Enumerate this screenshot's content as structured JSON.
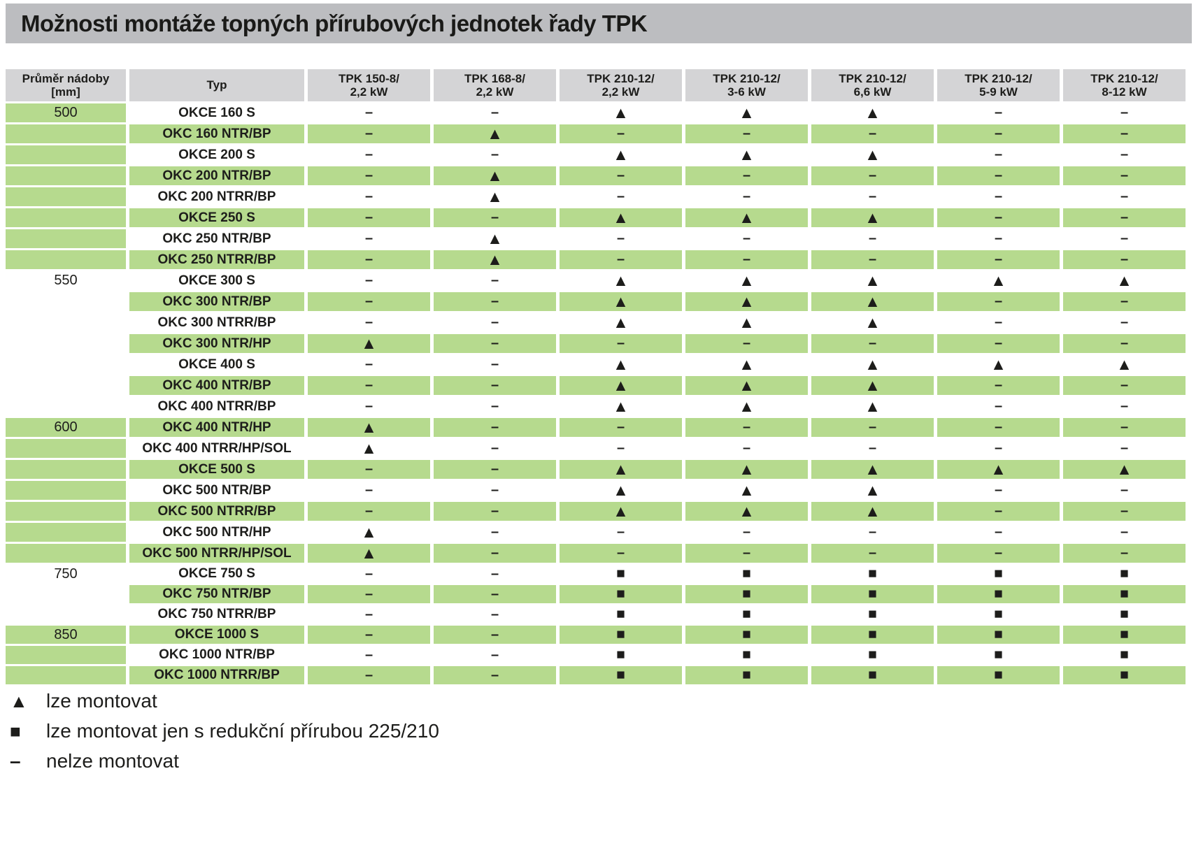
{
  "title": "Možnosti montáže topných přírubových jednotek řady TPK",
  "colors": {
    "title_bar_bg": "#bcbdc0",
    "header_bg": "#d4d4d6",
    "row_green": "#b6da8e",
    "row_white": "#ffffff",
    "text": "#1d1d1b"
  },
  "symbols": {
    "dash": "–",
    "triangle": "▲",
    "square": "■"
  },
  "table": {
    "col1_header": {
      "line1": "Průměr nádoby",
      "line2": "[mm]"
    },
    "col2_header": "Typ",
    "data_headers": [
      {
        "line1": "TPK 150-8/",
        "line2": "2,2 kW"
      },
      {
        "line1": "TPK 168-8/",
        "line2": "2,2 kW"
      },
      {
        "line1": "TPK 210-12/",
        "line2": "2,2 kW"
      },
      {
        "line1": "TPK 210-12/",
        "line2": "3-6 kW"
      },
      {
        "line1": "TPK 210-12/",
        "line2": "6,6 kW"
      },
      {
        "line1": "TPK 210-12/",
        "line2": "5-9 kW"
      },
      {
        "line1": "TPK 210-12/",
        "line2": "8-12 kW"
      }
    ],
    "rows": [
      {
        "diameter": "500",
        "diameter_bg": "green",
        "type": "OKCE 160 S",
        "cells": [
          "dash",
          "dash",
          "triangle",
          "triangle",
          "triangle",
          "dash",
          "dash"
        ]
      },
      {
        "diameter": "",
        "diameter_bg": "green",
        "type": "OKC 160 NTR/BP",
        "cells": [
          "dash",
          "triangle",
          "dash",
          "dash",
          "dash",
          "dash",
          "dash"
        ]
      },
      {
        "diameter": "",
        "diameter_bg": "green",
        "type": "OKCE 200 S",
        "cells": [
          "dash",
          "dash",
          "triangle",
          "triangle",
          "triangle",
          "dash",
          "dash"
        ]
      },
      {
        "diameter": "",
        "diameter_bg": "green",
        "type": "OKC 200 NTR/BP",
        "cells": [
          "dash",
          "triangle",
          "dash",
          "dash",
          "dash",
          "dash",
          "dash"
        ]
      },
      {
        "diameter": "",
        "diameter_bg": "green",
        "type": "OKC 200 NTRR/BP",
        "cells": [
          "dash",
          "triangle",
          "dash",
          "dash",
          "dash",
          "dash",
          "dash"
        ]
      },
      {
        "diameter": "",
        "diameter_bg": "green",
        "type": "OKCE 250 S",
        "cells": [
          "dash",
          "dash",
          "triangle",
          "triangle",
          "triangle",
          "dash",
          "dash"
        ]
      },
      {
        "diameter": "",
        "diameter_bg": "green",
        "type": "OKC 250 NTR/BP",
        "cells": [
          "dash",
          "triangle",
          "dash",
          "dash",
          "dash",
          "dash",
          "dash"
        ]
      },
      {
        "diameter": "",
        "diameter_bg": "green",
        "type": "OKC 250 NTRR/BP",
        "cells": [
          "dash",
          "triangle",
          "dash",
          "dash",
          "dash",
          "dash",
          "dash"
        ]
      },
      {
        "diameter": "550",
        "diameter_bg": "white",
        "type": "OKCE 300 S",
        "cells": [
          "dash",
          "dash",
          "triangle",
          "triangle",
          "triangle",
          "triangle",
          "triangle"
        ]
      },
      {
        "diameter": "",
        "diameter_bg": "white",
        "type": "OKC 300 NTR/BP",
        "cells": [
          "dash",
          "dash",
          "triangle",
          "triangle",
          "triangle",
          "dash",
          "dash"
        ]
      },
      {
        "diameter": "",
        "diameter_bg": "white",
        "type": "OKC 300 NTRR/BP",
        "cells": [
          "dash",
          "dash",
          "triangle",
          "triangle",
          "triangle",
          "dash",
          "dash"
        ]
      },
      {
        "diameter": "",
        "diameter_bg": "white",
        "type": "OKC 300 NTR/HP",
        "cells": [
          "triangle",
          "dash",
          "dash",
          "dash",
          "dash",
          "dash",
          "dash"
        ]
      },
      {
        "diameter": "",
        "diameter_bg": "white",
        "type": "OKCE 400 S",
        "cells": [
          "dash",
          "dash",
          "triangle",
          "triangle",
          "triangle",
          "triangle",
          "triangle"
        ]
      },
      {
        "diameter": "",
        "diameter_bg": "white",
        "type": "OKC 400 NTR/BP",
        "cells": [
          "dash",
          "dash",
          "triangle",
          "triangle",
          "triangle",
          "dash",
          "dash"
        ]
      },
      {
        "diameter": "",
        "diameter_bg": "white",
        "type": "OKC 400 NTRR/BP",
        "cells": [
          "dash",
          "dash",
          "triangle",
          "triangle",
          "triangle",
          "dash",
          "dash"
        ]
      },
      {
        "diameter": "600",
        "diameter_bg": "green",
        "type": "OKC 400 NTR/HP",
        "cells": [
          "triangle",
          "dash",
          "dash",
          "dash",
          "dash",
          "dash",
          "dash"
        ]
      },
      {
        "diameter": "",
        "diameter_bg": "green",
        "type": "OKC 400 NTRR/HP/SOL",
        "cells": [
          "triangle",
          "dash",
          "dash",
          "dash",
          "dash",
          "dash",
          "dash"
        ]
      },
      {
        "diameter": "",
        "diameter_bg": "green",
        "type": "OKCE 500 S",
        "cells": [
          "dash",
          "dash",
          "triangle",
          "triangle",
          "triangle",
          "triangle",
          "triangle"
        ]
      },
      {
        "diameter": "",
        "diameter_bg": "green",
        "type": "OKC 500 NTR/BP",
        "cells": [
          "dash",
          "dash",
          "triangle",
          "triangle",
          "triangle",
          "dash",
          "dash"
        ]
      },
      {
        "diameter": "",
        "diameter_bg": "green",
        "type": "OKC 500 NTRR/BP",
        "cells": [
          "dash",
          "dash",
          "triangle",
          "triangle",
          "triangle",
          "dash",
          "dash"
        ]
      },
      {
        "diameter": "",
        "diameter_bg": "green",
        "type": "OKC 500 NTR/HP",
        "cells": [
          "triangle",
          "dash",
          "dash",
          "dash",
          "dash",
          "dash",
          "dash"
        ]
      },
      {
        "diameter": "",
        "diameter_bg": "green",
        "type": "OKC 500 NTRR/HP/SOL",
        "cells": [
          "triangle",
          "dash",
          "dash",
          "dash",
          "dash",
          "dash",
          "dash"
        ]
      },
      {
        "diameter": "750",
        "diameter_bg": "white",
        "type": "OKCE 750 S",
        "cells": [
          "dash",
          "dash",
          "square",
          "square",
          "square",
          "square",
          "square"
        ]
      },
      {
        "diameter": "",
        "diameter_bg": "white",
        "type": "OKC 750 NTR/BP",
        "cells": [
          "dash",
          "dash",
          "square",
          "square",
          "square",
          "square",
          "square"
        ]
      },
      {
        "diameter": "",
        "diameter_bg": "white",
        "type": "OKC 750 NTRR/BP",
        "cells": [
          "dash",
          "dash",
          "square",
          "square",
          "square",
          "square",
          "square"
        ]
      },
      {
        "diameter": "850",
        "diameter_bg": "green",
        "type": "OKCE 1000 S",
        "cells": [
          "dash",
          "dash",
          "square",
          "square",
          "square",
          "square",
          "square"
        ]
      },
      {
        "diameter": "",
        "diameter_bg": "green",
        "type": "OKC 1000 NTR/BP",
        "cells": [
          "dash",
          "dash",
          "square",
          "square",
          "square",
          "square",
          "square"
        ]
      },
      {
        "diameter": "",
        "diameter_bg": "green",
        "type": "OKC 1000 NTRR/BP",
        "cells": [
          "dash",
          "dash",
          "square",
          "square",
          "square",
          "square",
          "square"
        ]
      }
    ]
  },
  "legend": {
    "items": [
      {
        "symbol": "triangle",
        "label": "lze montovat"
      },
      {
        "symbol": "square",
        "label": "lze montovat jen s redukční přírubou 225/210"
      },
      {
        "symbol": "dash",
        "label": "nelze montovat"
      }
    ]
  }
}
